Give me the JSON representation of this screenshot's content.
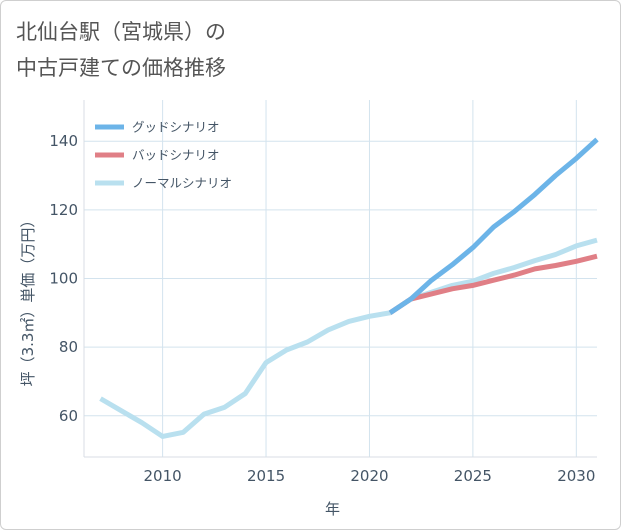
{
  "chart_data": {
    "type": "line",
    "title_lines": [
      "北仙台駅（宮城県）の",
      "中古戸建ての価格推移"
    ],
    "xlabel": "年",
    "ylabel": "坪（3.3㎡）単価（万円）",
    "xlim": [
      2006.2,
      2031
    ],
    "ylim": [
      48,
      152
    ],
    "x_ticks": [
      2010,
      2015,
      2020,
      2025,
      2030
    ],
    "y_ticks": [
      60,
      80,
      100,
      120,
      140
    ],
    "grid": true,
    "legend_position": "top-left",
    "series": [
      {
        "key": "good",
        "name": "グッドシナリオ",
        "color": "#6cb4e8",
        "x": [
          2021,
          2022,
          2023,
          2024,
          2025,
          2026,
          2027,
          2028,
          2029,
          2030,
          2031
        ],
        "values": [
          90,
          94,
          99.5,
          104,
          109,
          115,
          119.5,
          124.5,
          130,
          135,
          140.5
        ]
      },
      {
        "key": "bad",
        "name": "バッドシナリオ",
        "color": "#e07f86",
        "x": [
          2021,
          2022,
          2023,
          2024,
          2025,
          2026,
          2027,
          2028,
          2029,
          2030,
          2031
        ],
        "values": [
          90,
          94,
          95.5,
          97,
          98,
          99.5,
          101,
          102.8,
          103.8,
          105,
          106.5
        ]
      },
      {
        "key": "normal",
        "name": "ノーマルシナリオ",
        "color": "#b9e0ef",
        "x": [
          2007,
          2008,
          2009,
          2010,
          2011,
          2012,
          2013,
          2014,
          2015,
          2016,
          2017,
          2018,
          2019,
          2020,
          2021,
          2022,
          2023,
          2024,
          2025,
          2026,
          2027,
          2028,
          2029,
          2030,
          2031
        ],
        "values": [
          65,
          61.5,
          58,
          54,
          55.2,
          60.5,
          62.5,
          66.5,
          75.5,
          79.2,
          81.5,
          85,
          87.5,
          89,
          90,
          94,
          96,
          98,
          99.2,
          101.5,
          103.2,
          105.2,
          107,
          109.5,
          111.2
        ]
      }
    ]
  }
}
